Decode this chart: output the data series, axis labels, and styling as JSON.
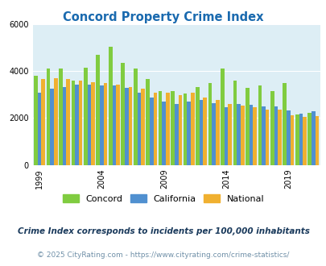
{
  "title": "Concord Property Crime Index",
  "years": [
    1999,
    2000,
    2001,
    2002,
    2003,
    2004,
    2005,
    2006,
    2007,
    2008,
    2009,
    2010,
    2011,
    2012,
    2013,
    2014,
    2015,
    2016,
    2017,
    2018,
    2019,
    2020,
    2021
  ],
  "concord": [
    3780,
    4100,
    4100,
    3600,
    4150,
    4700,
    5020,
    4350,
    4100,
    3650,
    3150,
    3150,
    3050,
    3300,
    3480,
    4100,
    3580,
    3280,
    3380,
    3130,
    3480,
    2150,
    2230
  ],
  "california": [
    3080,
    3230,
    3310,
    3420,
    3420,
    3380,
    3380,
    3280,
    3060,
    2870,
    2680,
    2600,
    2680,
    2750,
    2620,
    2450,
    2600,
    2560,
    2490,
    2480,
    2330,
    2180,
    2280
  ],
  "national": [
    3640,
    3680,
    3660,
    3600,
    3530,
    3470,
    3420,
    3330,
    3250,
    3060,
    3060,
    2980,
    3080,
    2870,
    2770,
    2590,
    2510,
    2450,
    2350,
    2360,
    2100,
    2050,
    2080
  ],
  "concord_color": "#80cc40",
  "california_color": "#5090d0",
  "national_color": "#f0b030",
  "bg_color": "#ddeef5",
  "ylim": [
    0,
    6000
  ],
  "yticks": [
    0,
    2000,
    4000,
    6000
  ],
  "xtick_years": [
    1999,
    2004,
    2009,
    2014,
    2019
  ],
  "subtitle": "Crime Index corresponds to incidents per 100,000 inhabitants",
  "footer": "© 2025 CityRating.com - https://www.cityrating.com/crime-statistics/",
  "title_color": "#1a6aaf",
  "subtitle_color": "#1a3a5c",
  "footer_color": "#7090a8"
}
